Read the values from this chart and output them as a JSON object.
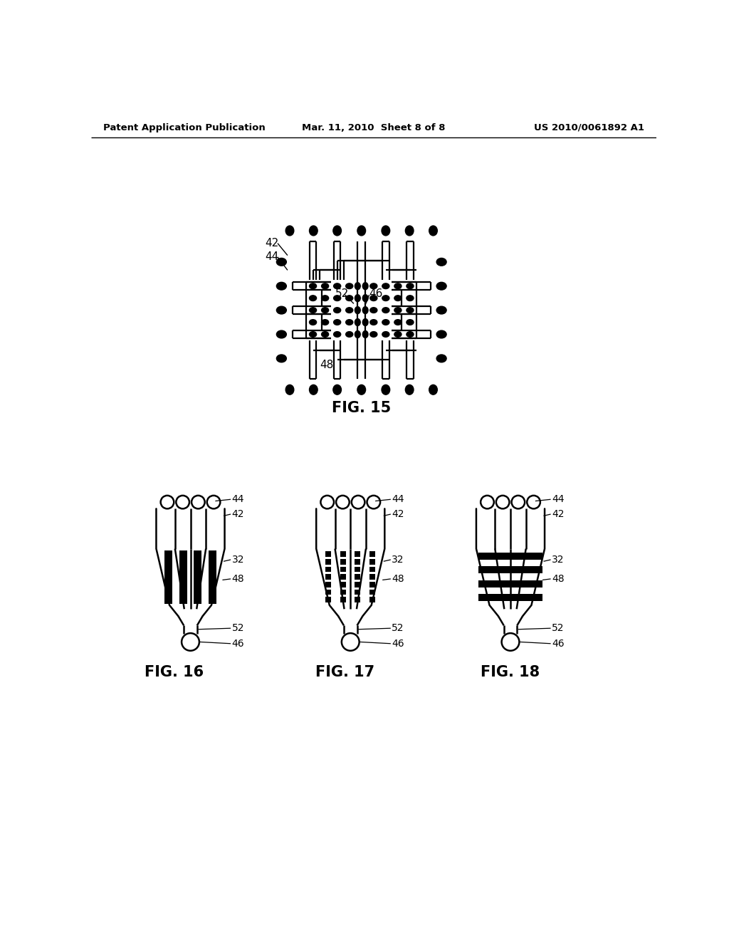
{
  "bg_color": "#ffffff",
  "header_left": "Patent Application Publication",
  "header_mid": "Mar. 11, 2010  Sheet 8 of 8",
  "header_right": "US 2010/0061892 A1",
  "fig15_label": "FIG. 15",
  "fig16_label": "FIG. 16",
  "fig17_label": "FIG. 17",
  "fig18_label": "FIG. 18",
  "line_color": "#000000",
  "fill_color": "#000000",
  "lw": 1.5
}
